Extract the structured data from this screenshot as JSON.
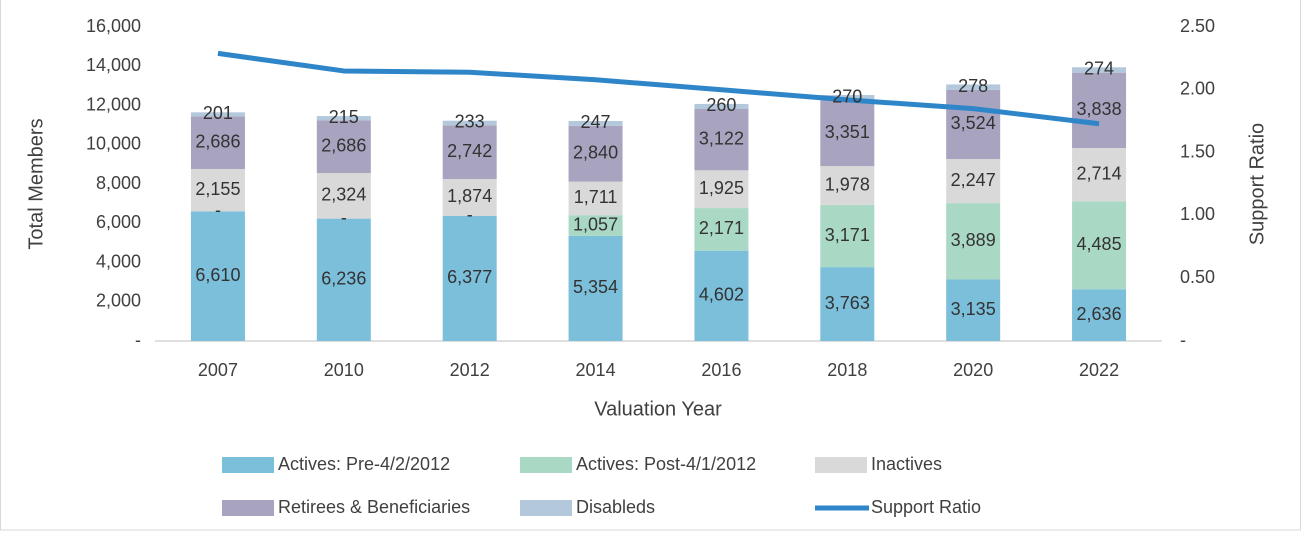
{
  "chart_data": {
    "type": "bar",
    "x_label": "Valuation Year",
    "y_label": "Total Members",
    "y2_label": "Support Ratio",
    "categories": [
      "2007",
      "2010",
      "2012",
      "2014",
      "2016",
      "2018",
      "2020",
      "2022"
    ],
    "stacked": true,
    "grid": false,
    "series": [
      {
        "name": "Actives: Pre-4/2/2012",
        "color": "#7bbfdb",
        "values": [
          6610,
          6236,
          6377,
          5354,
          4602,
          3763,
          3135,
          2636
        ],
        "value_labels": [
          "6,610",
          "6,236",
          "6,377",
          "5,354",
          "4,602",
          "3,763",
          "3,135",
          "2,636"
        ]
      },
      {
        "name": "Actives: Post-4/1/2012",
        "color": "#a9d8c5",
        "values": [
          0,
          0,
          0,
          1057,
          2171,
          3171,
          3889,
          4485
        ],
        "value_labels": [
          "-",
          "-",
          "-",
          "1,057",
          "2,171",
          "3,171",
          "3,889",
          "4,485"
        ]
      },
      {
        "name": "Inactives",
        "color": "#d9d9d9",
        "values": [
          2155,
          2324,
          1874,
          1711,
          1925,
          1978,
          2247,
          2714
        ],
        "value_labels": [
          "2,155",
          "2,324",
          "1,874",
          "1,711",
          "1,925",
          "1,978",
          "2,247",
          "2,714"
        ]
      },
      {
        "name": "Retirees & Beneficiaries",
        "color": "#a8a3bf",
        "values": [
          2686,
          2686,
          2742,
          2840,
          3122,
          3351,
          3524,
          3838
        ],
        "value_labels": [
          "2,686",
          "2,686",
          "2,742",
          "2,840",
          "3,122",
          "3,351",
          "3,524",
          "3,838"
        ]
      },
      {
        "name": "Disableds",
        "color": "#b3c8db",
        "values": [
          201,
          215,
          233,
          247,
          260,
          270,
          278,
          274
        ]
      },
      {
        "name": "Support Ratio",
        "type": "line",
        "axis": "y2",
        "color": "#2e86c9",
        "values": [
          2.29,
          2.15,
          2.14,
          2.08,
          2.0,
          1.92,
          1.85,
          1.73
        ]
      }
    ],
    "ylim": [
      0,
      16000
    ],
    "yticks": [
      {
        "value": 0,
        "label": "-"
      },
      {
        "value": 2000,
        "label": "2,000"
      },
      {
        "value": 4000,
        "label": "4,000"
      },
      {
        "value": 6000,
        "label": "6,000"
      },
      {
        "value": 8000,
        "label": "8,000"
      },
      {
        "value": 10000,
        "label": "10,000"
      },
      {
        "value": 12000,
        "label": "12,000"
      },
      {
        "value": 14000,
        "label": "14,000"
      },
      {
        "value": 16000,
        "label": "16,000"
      }
    ],
    "y2lim": [
      0,
      2.5
    ],
    "y2ticks": [
      {
        "value": 0,
        "label": "-"
      },
      {
        "value": 0.5,
        "label": "0.50"
      },
      {
        "value": 1,
        "label": "1.00"
      },
      {
        "value": 1.5,
        "label": "1.50"
      },
      {
        "value": 2,
        "label": "2.00"
      },
      {
        "value": 2.5,
        "label": "2.50"
      }
    ],
    "legend": "bottom"
  }
}
